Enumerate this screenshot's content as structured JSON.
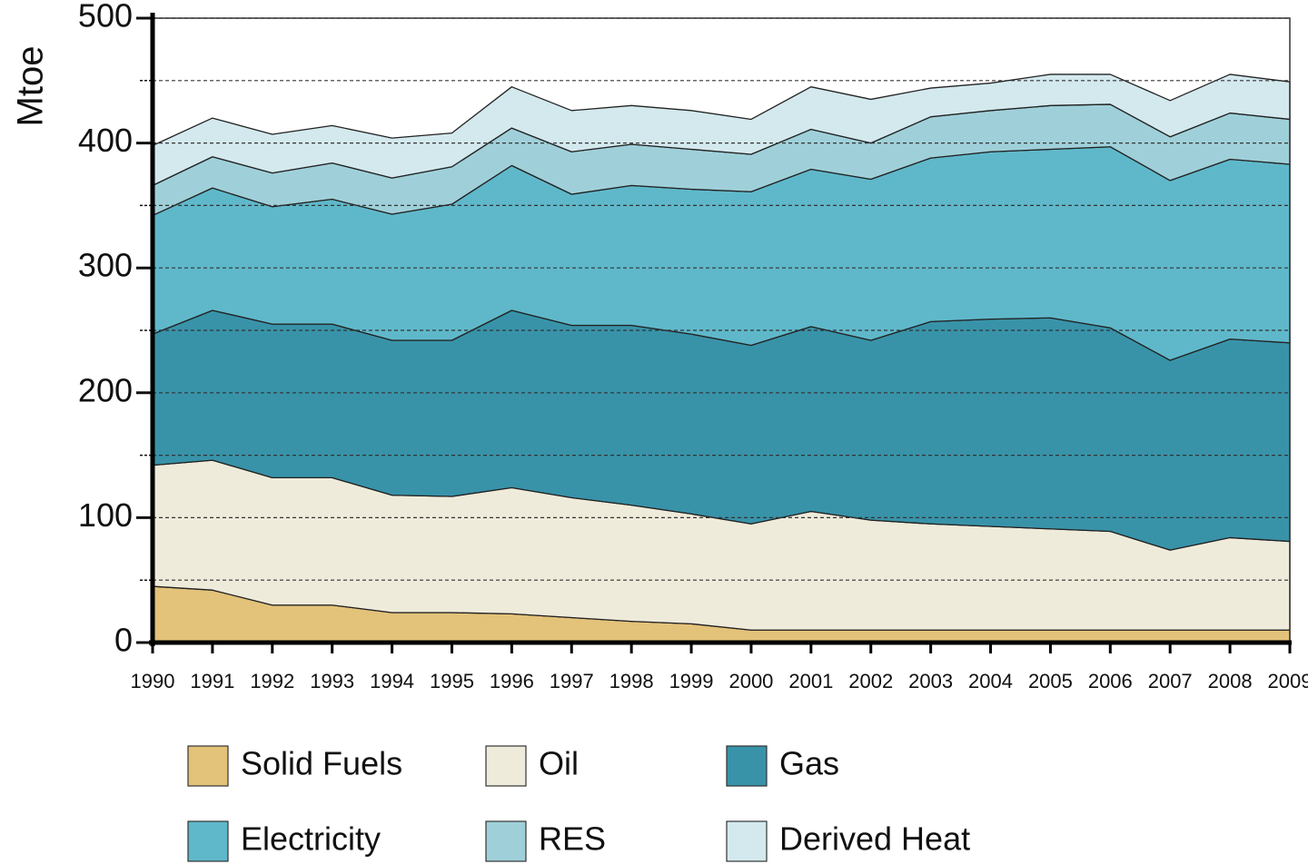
{
  "chart_data": {
    "type": "stacked_area",
    "y_label": "Mtoe",
    "categories": [
      "1990",
      "1991",
      "1992",
      "1993",
      "1994",
      "1995",
      "1996",
      "1997",
      "1998",
      "1999",
      "2000",
      "2001",
      "2002",
      "2003",
      "2004",
      "2005",
      "2006",
      "2007",
      "2008",
      "2009"
    ],
    "series": [
      {
        "name": "Solid Fuels",
        "color": "#e3c27a",
        "values": [
          45,
          42,
          30,
          30,
          24,
          24,
          23,
          20,
          17,
          15,
          10,
          10,
          10,
          10,
          10,
          10,
          10,
          10,
          10,
          10
        ]
      },
      {
        "name": "Oil",
        "color": "#efebda",
        "values": [
          97,
          104,
          102,
          102,
          94,
          93,
          101,
          96,
          93,
          88,
          85,
          95,
          88,
          85,
          83,
          81,
          79,
          64,
          74,
          71
        ]
      },
      {
        "name": "Gas",
        "color": "#3893a9",
        "values": [
          105,
          120,
          123,
          123,
          124,
          125,
          142,
          138,
          144,
          144,
          143,
          148,
          144,
          162,
          166,
          169,
          163,
          152,
          159,
          159
        ]
      },
      {
        "name": "Electricity",
        "color": "#5fb8ca",
        "values": [
          95,
          98,
          94,
          100,
          101,
          109,
          116,
          105,
          112,
          116,
          123,
          126,
          129,
          131,
          134,
          135,
          145,
          144,
          144,
          143
        ]
      },
      {
        "name": "RES",
        "color": "#9fd0d9",
        "values": [
          24,
          25,
          27,
          29,
          29,
          30,
          30,
          34,
          33,
          32,
          30,
          32,
          29,
          33,
          33,
          35,
          34,
          35,
          37,
          36
        ]
      },
      {
        "name": "Derived Heat",
        "color": "#d3e9ee",
        "values": [
          32,
          31,
          31,
          30,
          32,
          27,
          33,
          33,
          31,
          31,
          28,
          34,
          35,
          23,
          22,
          25,
          24,
          29,
          31,
          30
        ]
      }
    ],
    "ylim": [
      0,
      500
    ],
    "yticks": [
      0,
      100,
      200,
      300,
      400,
      500
    ],
    "yminorticks": [
      50,
      150,
      250,
      350,
      450
    ],
    "grid": true,
    "legend": "bottom"
  }
}
